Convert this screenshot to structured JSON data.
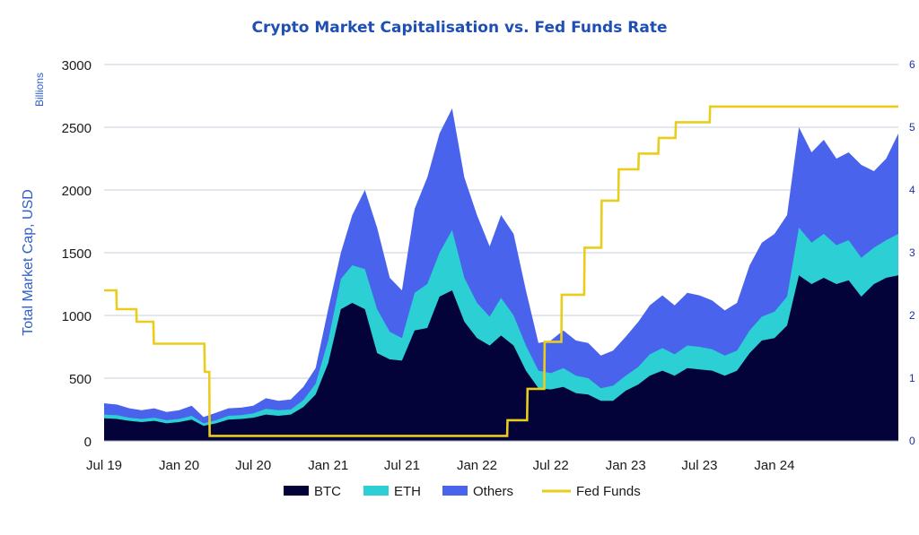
{
  "colors": {
    "btc": "#03033a",
    "eth": "#2ccfd3",
    "others": "#4a63ec",
    "fed": "#e9cd1c",
    "title": "#1f4fb5",
    "axis_label": "#2f5fc7",
    "right_ticks": "#1f2fa5",
    "grid": "#c8d2dc"
  },
  "chart_data": {
    "type": "area",
    "title": "Crypto Market Capitalisation vs. Fed Funds Rate",
    "ylabel": "Total Market Cap, USD",
    "y_units": "Billions",
    "ylim": [
      0,
      3000
    ],
    "y_ticks": [
      "0",
      "500",
      "1000",
      "1500",
      "2000",
      "2500",
      "3000"
    ],
    "y2lim": [
      0,
      6
    ],
    "y2_ticks": [
      "0",
      "1",
      "2",
      "3",
      "4",
      "5",
      "6"
    ],
    "x_range": [
      "2019-07-01",
      "2024-10-31"
    ],
    "x_ticks": [
      {
        "date": "2019-07-01",
        "label": "Jul 19"
      },
      {
        "date": "2020-01-01",
        "label": "Jan 20"
      },
      {
        "date": "2020-07-01",
        "label": "Jul 20"
      },
      {
        "date": "2021-01-01",
        "label": "Jan 21"
      },
      {
        "date": "2021-07-01",
        "label": "Jul 21"
      },
      {
        "date": "2022-01-01",
        "label": "Jan 22"
      },
      {
        "date": "2022-07-01",
        "label": "Jul 22"
      },
      {
        "date": "2023-01-01",
        "label": "Jan 23"
      },
      {
        "date": "2023-07-01",
        "label": "Jul 23"
      },
      {
        "date": "2024-01-01",
        "label": "Jan 24"
      }
    ],
    "legend": [
      "BTC",
      "ETH",
      "Others",
      "Fed Funds"
    ],
    "legend_position": "bottom",
    "grid": true,
    "series": [
      {
        "name": "BTC",
        "x": [
          "2019-07-01",
          "2019-08-01",
          "2019-09-01",
          "2019-10-01",
          "2019-11-01",
          "2019-12-01",
          "2020-01-01",
          "2020-02-01",
          "2020-03-01",
          "2020-04-01",
          "2020-05-01",
          "2020-06-01",
          "2020-07-01",
          "2020-08-01",
          "2020-09-01",
          "2020-10-01",
          "2020-11-01",
          "2020-12-01",
          "2021-01-01",
          "2021-02-01",
          "2021-03-01",
          "2021-04-01",
          "2021-05-01",
          "2021-06-01",
          "2021-07-01",
          "2021-08-01",
          "2021-09-01",
          "2021-10-01",
          "2021-11-01",
          "2021-12-01",
          "2022-01-01",
          "2022-02-01",
          "2022-03-01",
          "2022-04-01",
          "2022-05-01",
          "2022-06-01",
          "2022-07-01",
          "2022-08-01",
          "2022-09-01",
          "2022-10-01",
          "2022-11-01",
          "2022-12-01",
          "2023-01-01",
          "2023-02-01",
          "2023-03-01",
          "2023-04-01",
          "2023-05-01",
          "2023-06-01",
          "2023-07-01",
          "2023-08-01",
          "2023-09-01",
          "2023-10-01",
          "2023-11-01",
          "2023-12-01",
          "2024-01-01",
          "2024-02-01",
          "2024-03-01",
          "2024-04-01",
          "2024-05-01",
          "2024-06-01",
          "2024-07-01",
          "2024-08-01",
          "2024-09-01",
          "2024-10-01",
          "2024-10-31"
        ],
        "values": [
          180,
          175,
          160,
          150,
          160,
          140,
          150,
          170,
          120,
          140,
          170,
          175,
          185,
          210,
          200,
          210,
          270,
          370,
          620,
          1050,
          1100,
          1050,
          700,
          650,
          640,
          880,
          900,
          1150,
          1200,
          950,
          820,
          760,
          840,
          760,
          560,
          420,
          410,
          430,
          380,
          370,
          320,
          320,
          400,
          450,
          520,
          560,
          520,
          580,
          570,
          560,
          520,
          560,
          700,
          800,
          820,
          920,
          1320,
          1250,
          1300,
          1250,
          1280,
          1150,
          1250,
          1300,
          1320
        ]
      },
      {
        "name": "ETH",
        "values": [
          210,
          205,
          185,
          175,
          185,
          165,
          175,
          200,
          140,
          165,
          200,
          205,
          220,
          255,
          245,
          250,
          325,
          455,
          800,
          1290,
          1400,
          1370,
          1050,
          870,
          820,
          1180,
          1250,
          1500,
          1680,
          1300,
          1100,
          990,
          1140,
          1000,
          760,
          560,
          540,
          580,
          520,
          500,
          420,
          440,
          520,
          590,
          690,
          740,
          690,
          760,
          750,
          730,
          680,
          720,
          880,
          990,
          1030,
          1150,
          1700,
          1580,
          1650,
          1560,
          1600,
          1460,
          1540,
          1600,
          1650
        ]
      },
      {
        "name": "Others",
        "values": [
          300,
          290,
          260,
          245,
          260,
          230,
          245,
          280,
          190,
          225,
          260,
          265,
          280,
          340,
          320,
          330,
          430,
          580,
          1050,
          1500,
          1800,
          2000,
          1700,
          1300,
          1200,
          1850,
          2100,
          2450,
          2650,
          2100,
          1800,
          1550,
          1800,
          1650,
          1200,
          780,
          800,
          880,
          800,
          780,
          680,
          720,
          830,
          950,
          1080,
          1160,
          1080,
          1180,
          1160,
          1120,
          1040,
          1100,
          1400,
          1580,
          1650,
          1800,
          2500,
          2300,
          2400,
          2250,
          2300,
          2200,
          2150,
          2250,
          2450
        ]
      },
      {
        "name": "Fed Funds",
        "x": [
          "2019-07-01",
          "2019-07-31",
          "2019-08-01",
          "2019-09-18",
          "2019-09-19",
          "2019-10-30",
          "2019-10-31",
          "2020-03-03",
          "2020-03-04",
          "2020-03-15",
          "2020-03-16",
          "2022-03-16",
          "2022-03-17",
          "2022-05-04",
          "2022-05-05",
          "2022-06-15",
          "2022-06-16",
          "2022-07-27",
          "2022-07-28",
          "2022-09-21",
          "2022-09-22",
          "2022-11-02",
          "2022-11-03",
          "2022-12-14",
          "2022-12-15",
          "2023-02-01",
          "2023-02-02",
          "2023-03-22",
          "2023-03-23",
          "2023-05-03",
          "2023-05-04",
          "2023-07-26",
          "2023-07-27",
          "2024-10-31"
        ],
        "values": [
          2.4,
          2.4,
          2.1,
          2.1,
          1.9,
          1.9,
          1.55,
          1.55,
          1.1,
          1.1,
          0.08,
          0.08,
          0.33,
          0.33,
          0.83,
          0.83,
          1.58,
          1.58,
          2.33,
          2.33,
          3.08,
          3.08,
          3.83,
          3.83,
          4.33,
          4.33,
          4.58,
          4.58,
          4.83,
          4.83,
          5.08,
          5.08,
          5.33,
          5.33
        ]
      }
    ]
  }
}
